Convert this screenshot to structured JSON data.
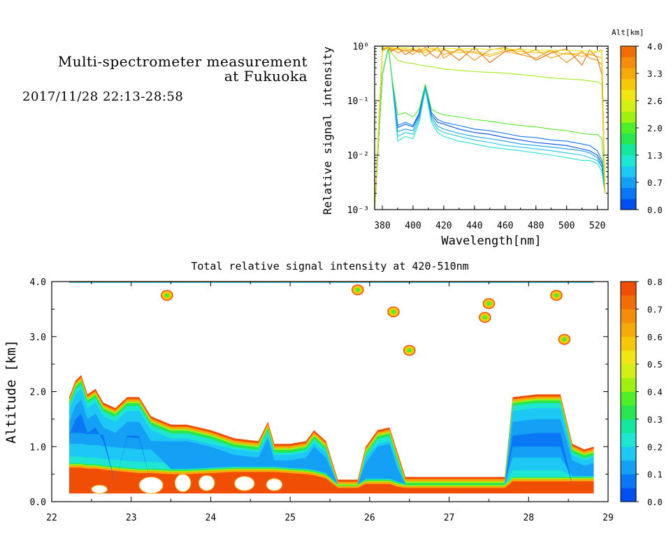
{
  "header": {
    "title_line1": "Multi-spectrometer measurement",
    "title_line2": "at Fukuoka",
    "datetime": "2017/11/28 22:13-28:58"
  },
  "chart_data": [
    {
      "type": "line",
      "title": "",
      "xlabel": "Wavelength[nm]",
      "ylabel": "Relative signal intensity",
      "xlim": [
        375,
        527
      ],
      "ylim": [
        0.001,
        1
      ],
      "yscale": "log",
      "x_ticks": [
        "380",
        "400",
        "420",
        "440",
        "460",
        "480",
        "500",
        "520"
      ],
      "y_ticks": [
        "10⁻³",
        "10⁻²",
        "10⁻¹",
        "10⁰"
      ],
      "colorbar": {
        "label": "Alt[km]",
        "ticks": [
          "4.0",
          "3.3",
          "2.6",
          "2.0",
          "1.3",
          "0.7",
          "0.0"
        ],
        "colors": [
          "#0050f0",
          "#0a78f5",
          "#14a0f5",
          "#1ec8f5",
          "#1ee6d2",
          "#14e6a0",
          "#28e650",
          "#50f028",
          "#a0f014",
          "#d2f014",
          "#f0e614",
          "#f5c80a",
          "#f5aa0a",
          "#f58c0a",
          "#f06e05"
        ]
      },
      "x": [
        375,
        380,
        384,
        386,
        390,
        395,
        400,
        404,
        408,
        412,
        416,
        420,
        430,
        440,
        450,
        460,
        470,
        480,
        490,
        500,
        510,
        515,
        520,
        523,
        525
      ],
      "series": [
        {
          "color": "#0a78f5",
          "values": [
            0.001,
            0.3,
            0.95,
            0.3,
            0.035,
            0.04,
            0.035,
            0.06,
            0.19,
            0.06,
            0.045,
            0.04,
            0.035,
            0.03,
            0.028,
            0.025,
            0.022,
            0.021,
            0.019,
            0.018,
            0.016,
            0.015,
            0.012,
            0.008,
            0.002
          ]
        },
        {
          "color": "#0050f0",
          "values": [
            0.001,
            0.3,
            0.95,
            0.3,
            0.032,
            0.037,
            0.033,
            0.055,
            0.18,
            0.055,
            0.04,
            0.037,
            0.03,
            0.026,
            0.024,
            0.021,
            0.019,
            0.017,
            0.016,
            0.015,
            0.013,
            0.012,
            0.01,
            0.007,
            0.002
          ]
        },
        {
          "color": "#1ec8f5",
          "values": [
            0.001,
            0.3,
            0.95,
            0.3,
            0.022,
            0.026,
            0.024,
            0.045,
            0.17,
            0.045,
            0.03,
            0.026,
            0.022,
            0.019,
            0.017,
            0.015,
            0.014,
            0.013,
            0.012,
            0.011,
            0.01,
            0.009,
            0.008,
            0.006,
            0.002
          ]
        },
        {
          "color": "#1ee6d2",
          "values": [
            0.001,
            0.3,
            0.95,
            0.3,
            0.018,
            0.022,
            0.02,
            0.04,
            0.16,
            0.04,
            0.026,
            0.022,
            0.018,
            0.016,
            0.014,
            0.013,
            0.012,
            0.011,
            0.01,
            0.009,
            0.008,
            0.008,
            0.007,
            0.005,
            0.002
          ]
        },
        {
          "color": "#14a0f5",
          "values": [
            0.001,
            0.3,
            0.95,
            0.3,
            0.027,
            0.03,
            0.028,
            0.05,
            0.175,
            0.05,
            0.034,
            0.03,
            0.025,
            0.022,
            0.02,
            0.018,
            0.016,
            0.015,
            0.014,
            0.013,
            0.012,
            0.011,
            0.009,
            0.006,
            0.002
          ]
        },
        {
          "color": "#50f028",
          "values": [
            0.001,
            0.3,
            0.95,
            0.3,
            0.055,
            0.06,
            0.05,
            0.07,
            0.2,
            0.07,
            0.06,
            0.055,
            0.05,
            0.045,
            0.042,
            0.038,
            0.035,
            0.033,
            0.03,
            0.028,
            0.025,
            0.024,
            0.024,
            0.02,
            0.002
          ]
        },
        {
          "color": "#a0f014",
          "values": [
            0.001,
            0.8,
            0.95,
            0.75,
            0.55,
            0.5,
            0.48,
            0.45,
            0.43,
            0.42,
            0.4,
            0.38,
            0.36,
            0.34,
            0.33,
            0.32,
            0.3,
            0.28,
            0.26,
            0.25,
            0.24,
            0.23,
            0.22,
            0.2,
            0.002
          ]
        },
        {
          "color": "#f5c80a",
          "values": [
            0.001,
            0.95,
            0.9,
            0.95,
            0.85,
            0.9,
            0.8,
            0.85,
            0.75,
            0.9,
            0.8,
            0.85,
            0.75,
            0.8,
            0.7,
            0.85,
            0.8,
            0.75,
            0.8,
            0.7,
            0.75,
            0.7,
            0.8,
            0.85,
            0.002
          ]
        },
        {
          "color": "#f5aa0a",
          "values": [
            0.001,
            0.9,
            0.95,
            0.85,
            0.9,
            0.8,
            0.9,
            0.75,
            0.85,
            0.8,
            0.9,
            0.7,
            0.85,
            0.75,
            0.65,
            0.8,
            0.7,
            0.85,
            0.6,
            0.75,
            0.65,
            0.7,
            0.65,
            0.6,
            0.002
          ]
        },
        {
          "color": "#f58c0a",
          "values": [
            0.001,
            0.85,
            0.95,
            0.9,
            0.75,
            0.85,
            0.7,
            0.9,
            0.65,
            0.8,
            0.95,
            0.6,
            0.9,
            0.55,
            0.85,
            0.95,
            0.7,
            0.6,
            0.85,
            0.5,
            0.8,
            0.6,
            0.55,
            0.45,
            0.002
          ]
        },
        {
          "color": "#f06e05",
          "values": [
            0.001,
            0.9,
            0.95,
            0.8,
            0.95,
            0.7,
            0.85,
            0.8,
            0.95,
            0.7,
            0.6,
            0.9,
            0.55,
            0.95,
            0.5,
            0.8,
            0.9,
            0.55,
            0.75,
            0.9,
            0.45,
            0.85,
            0.6,
            0.3,
            0.002
          ]
        },
        {
          "color": "#f0e614",
          "values": [
            0.001,
            0.92,
            0.96,
            0.93,
            0.92,
            0.94,
            0.9,
            0.93,
            0.88,
            0.92,
            0.9,
            0.91,
            0.89,
            0.9,
            0.87,
            0.89,
            0.86,
            0.85,
            0.84,
            0.83,
            0.82,
            0.81,
            0.8,
            0.78,
            0.002
          ]
        }
      ]
    },
    {
      "type": "heatmap",
      "title": "Total relative signal intensity at 420-510nm",
      "xlabel": "",
      "ylabel": "Altitude [km]",
      "xlim": [
        22,
        29
      ],
      "ylim": [
        0,
        4
      ],
      "x_ticks": [
        "22",
        "23",
        "24",
        "25",
        "26",
        "27",
        "28",
        "29"
      ],
      "y_ticks": [
        "0.0",
        "1.0",
        "2.0",
        "3.0",
        "4.0"
      ],
      "colorbar": {
        "ticks": [
          "0.8",
          "0.7",
          "0.6",
          "0.5",
          "0.4",
          "0.3",
          "0.2",
          "0.1",
          "0.0"
        ],
        "colors": [
          "#0050f0",
          "#0a78f5",
          "#14a0f5",
          "#1ec8f5",
          "#1ee6d2",
          "#14e6a0",
          "#28e650",
          "#50f028",
          "#a0f014",
          "#d2f014",
          "#f0e614",
          "#f5c80a",
          "#f5aa0a",
          "#f58c0a",
          "#f06e05",
          "#f04e05"
        ]
      },
      "data_extent": {
        "t_start": 22.22,
        "t_end": 28.82,
        "alt_bottom": 0.15
      },
      "cloud_profile": [
        {
          "t": 22.22,
          "top": 1.9,
          "core_bottom": 0.7
        },
        {
          "t": 22.3,
          "top": 2.2,
          "core_bottom": 0.7
        },
        {
          "t": 22.37,
          "top": 2.3,
          "core_bottom": 0.7
        },
        {
          "t": 22.45,
          "top": 1.95,
          "core_bottom": 0.68
        },
        {
          "t": 22.55,
          "top": 2.05,
          "core_bottom": 0.68
        },
        {
          "t": 22.65,
          "top": 1.8,
          "core_bottom": 0.66
        },
        {
          "t": 22.8,
          "top": 1.7,
          "core_bottom": 0.64
        },
        {
          "t": 22.95,
          "top": 1.9,
          "core_bottom": 0.62
        },
        {
          "t": 23.1,
          "top": 1.9,
          "core_bottom": 0.6
        },
        {
          "t": 23.25,
          "top": 1.55,
          "core_bottom": 0.6
        },
        {
          "t": 23.5,
          "top": 1.4,
          "core_bottom": 0.58
        },
        {
          "t": 23.7,
          "top": 1.4,
          "core_bottom": 0.58
        },
        {
          "t": 24.0,
          "top": 1.3,
          "core_bottom": 0.6
        },
        {
          "t": 24.3,
          "top": 1.15,
          "core_bottom": 0.62
        },
        {
          "t": 24.6,
          "top": 1.1,
          "core_bottom": 0.62
        },
        {
          "t": 24.72,
          "top": 1.45,
          "core_bottom": 0.62
        },
        {
          "t": 24.8,
          "top": 1.05,
          "core_bottom": 0.62
        },
        {
          "t": 25.0,
          "top": 1.05,
          "core_bottom": 0.6
        },
        {
          "t": 25.2,
          "top": 1.1,
          "core_bottom": 0.58
        },
        {
          "t": 25.3,
          "top": 1.3,
          "core_bottom": 0.56
        },
        {
          "t": 25.45,
          "top": 1.1,
          "core_bottom": 0.5
        },
        {
          "t": 25.6,
          "top": 0.4,
          "core_bottom": 0.3
        },
        {
          "t": 25.85,
          "top": 0.4,
          "core_bottom": 0.3
        },
        {
          "t": 25.95,
          "top": 1.0,
          "core_bottom": 0.4
        },
        {
          "t": 26.1,
          "top": 1.3,
          "core_bottom": 0.4
        },
        {
          "t": 26.25,
          "top": 1.35,
          "core_bottom": 0.4
        },
        {
          "t": 26.35,
          "top": 0.9,
          "core_bottom": 0.35
        },
        {
          "t": 26.45,
          "top": 0.45,
          "core_bottom": 0.3
        },
        {
          "t": 27.0,
          "top": 0.45,
          "core_bottom": 0.3
        },
        {
          "t": 27.7,
          "top": 0.45,
          "core_bottom": 0.3
        },
        {
          "t": 27.8,
          "top": 1.9,
          "core_bottom": 0.45
        },
        {
          "t": 28.1,
          "top": 1.95,
          "core_bottom": 0.45
        },
        {
          "t": 28.4,
          "top": 1.95,
          "core_bottom": 0.45
        },
        {
          "t": 28.55,
          "top": 1.05,
          "core_bottom": 0.45
        },
        {
          "t": 28.7,
          "top": 0.95,
          "core_bottom": 0.45
        },
        {
          "t": 28.82,
          "top": 1.0,
          "core_bottom": 0.45
        }
      ],
      "upper_contours": [
        {
          "t": 23.45,
          "alt": 3.75
        },
        {
          "t": 25.85,
          "alt": 3.85
        },
        {
          "t": 26.3,
          "alt": 3.45
        },
        {
          "t": 27.5,
          "alt": 3.6
        },
        {
          "t": 27.45,
          "alt": 3.35
        },
        {
          "t": 28.45,
          "alt": 2.95
        },
        {
          "t": 28.35,
          "alt": 3.75
        },
        {
          "t": 26.5,
          "alt": 2.75
        }
      ]
    }
  ]
}
